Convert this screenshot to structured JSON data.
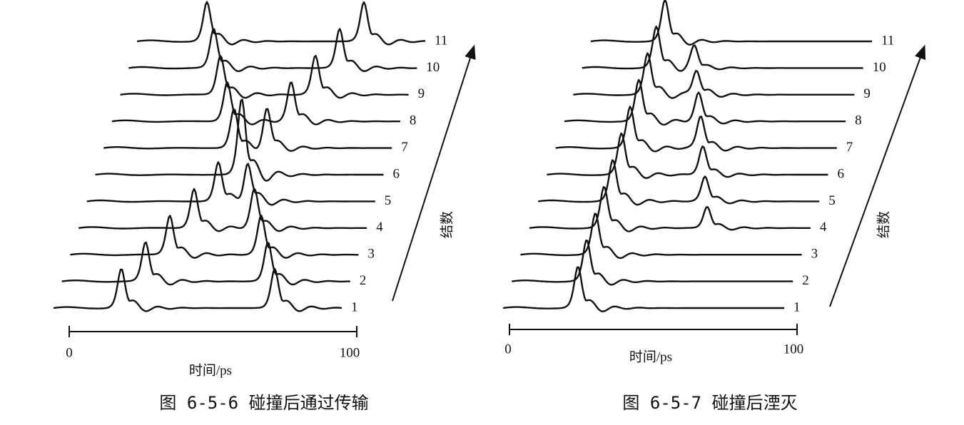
{
  "figures": [
    {
      "x_axis": {
        "ticks": [
          "0",
          "100"
        ],
        "label": "时间/ps"
      },
      "y_label": "结数",
      "trace_labels": [
        "1",
        "2",
        "3",
        "4",
        "5",
        "6",
        "7",
        "8",
        "9",
        "10",
        "11"
      ],
      "caption": "图 6-5-6   碰撞后通过传输"
    },
    {
      "x_axis": {
        "ticks": [
          "0",
          "100"
        ],
        "label": "时间/ps"
      },
      "y_label": "结数",
      "trace_labels": [
        "1",
        "2",
        "3",
        "4",
        "5",
        "6",
        "7",
        "8",
        "9",
        "10",
        "11"
      ],
      "caption": "图 6-5-7   碰撞后湮灭"
    }
  ]
}
